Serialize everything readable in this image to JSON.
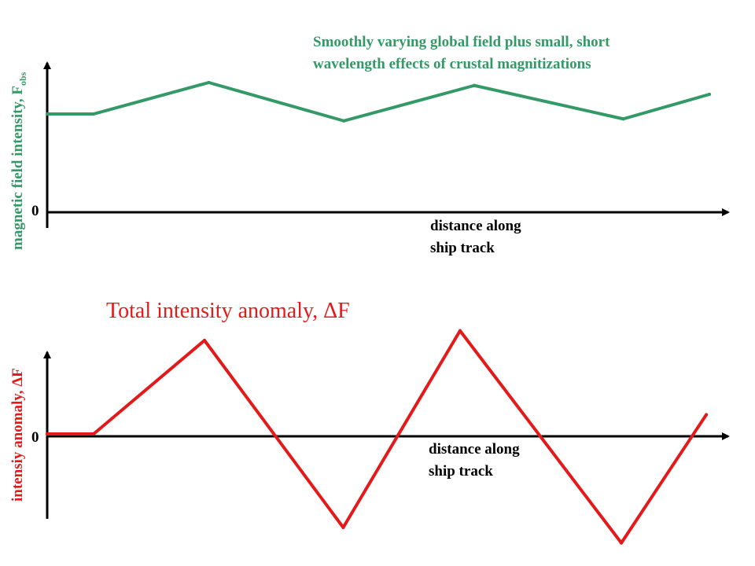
{
  "chart_data": [
    {
      "type": "line",
      "title": "Smoothly varying global field plus small, short wavelength effects of crustal magnitizations",
      "title_lines": [
        "Smoothly varying global field plus small, short",
        "wavelength effects of crustal magnitizations"
      ],
      "ylabel": "magnetic field intensity, F",
      "ylabel_subscript": "obs",
      "xlabel_lines": [
        "distance along",
        "ship track"
      ],
      "y_zero_label": "0",
      "color": "#339966",
      "x": [
        0.0,
        0.07,
        0.244,
        0.448,
        0.645,
        0.87,
        1.0
      ],
      "y": [
        1.0,
        1.0,
        1.32,
        0.93,
        1.29,
        0.95,
        1.2
      ],
      "xlim": [
        0,
        1.0
      ],
      "ylim": [
        0,
        1.5
      ],
      "grid": false
    },
    {
      "type": "line",
      "title": "Total intensity anomaly, ΔF",
      "ylabel": "intensiy anomaly, ΔF",
      "xlabel_lines": [
        "distance along",
        "ship track"
      ],
      "y_zero_label": "0",
      "color": "#e41a1a",
      "x": [
        0.0,
        0.07,
        0.237,
        0.446,
        0.622,
        0.865,
        0.993
      ],
      "y": [
        0.0,
        0.0,
        0.97,
        -0.97,
        1.07,
        -1.13,
        0.2
      ],
      "xlim": [
        0,
        1.0
      ],
      "ylim": [
        -0.97,
        0.84
      ],
      "grid": false
    }
  ]
}
